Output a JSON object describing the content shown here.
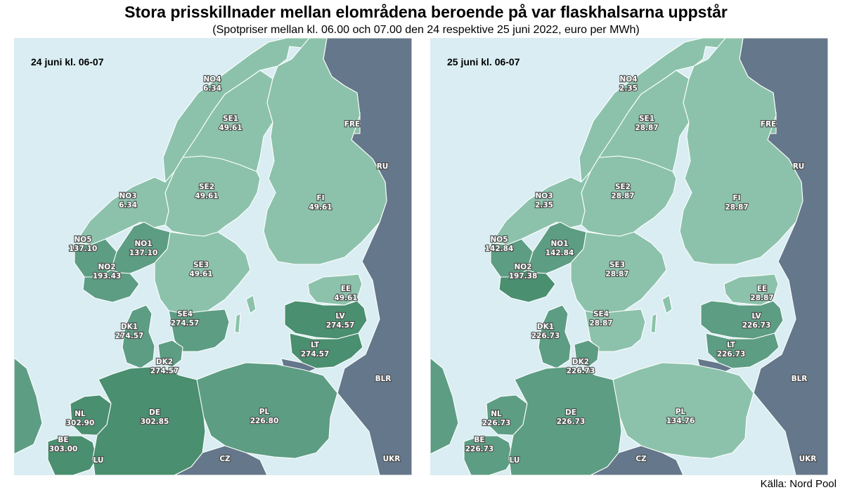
{
  "title": "Stora prisskillnader mellan elområdena beroende på var flaskhalsarna uppstår",
  "subtitle": "(Spotpriser mellan kl. 06.00 och 07.00 den 24 respektive 25 juni 2022, euro per MWh)",
  "source": "Källa: Nord Pool",
  "colors": {
    "sea": "#d9edf2",
    "non_nordpool": "#65778a",
    "light": "#8cc2ab",
    "mid": "#5d9d83",
    "dark": "#4a8f6f"
  },
  "panels": [
    {
      "label": "24 juni kl. 06-07",
      "zones": {
        "NO4": {
          "name": "NO4",
          "price": "6.34"
        },
        "SE1": {
          "name": "SE1",
          "price": "49.61"
        },
        "SE2": {
          "name": "SE2",
          "price": "49.61"
        },
        "NO3": {
          "name": "NO3",
          "price": "6.34"
        },
        "FI": {
          "name": "FI",
          "price": "49.61"
        },
        "NO5": {
          "name": "NO5",
          "price": "137.10"
        },
        "NO1": {
          "name": "NO1",
          "price": "137.10"
        },
        "NO2": {
          "name": "NO2",
          "price": "193.43"
        },
        "SE3": {
          "name": "SE3",
          "price": "49.61"
        },
        "EE": {
          "name": "EE",
          "price": "49.61"
        },
        "SE4": {
          "name": "SE4",
          "price": "274.57"
        },
        "LV": {
          "name": "LV",
          "price": "274.57"
        },
        "DK1": {
          "name": "DK1",
          "price": "274.57"
        },
        "LT": {
          "name": "LT",
          "price": "274.57"
        },
        "DK2": {
          "name": "DK2",
          "price": "274.57"
        },
        "NL": {
          "name": "NL",
          "price": "302.90"
        },
        "DE": {
          "name": "DE",
          "price": "302.85"
        },
        "PL": {
          "name": "PL",
          "price": "226.80"
        },
        "BE": {
          "name": "BE",
          "price": "303.00"
        }
      },
      "levels": {
        "NO4": "light",
        "NO3": "light",
        "SE1": "light",
        "SE2": "light",
        "SE3": "light",
        "FI": "light",
        "EE": "light",
        "NO5": "mid",
        "NO1": "mid",
        "NO2": "mid",
        "SE4": "mid",
        "DK1": "mid",
        "DK2": "mid",
        "PL": "mid",
        "LV": "dark",
        "LT": "dark",
        "NL": "dark",
        "DE": "dark",
        "BE": "dark"
      }
    },
    {
      "label": "25 juni kl. 06-07",
      "zones": {
        "NO4": {
          "name": "NO4",
          "price": "2.35"
        },
        "SE1": {
          "name": "SE1",
          "price": "28.87"
        },
        "SE2": {
          "name": "SE2",
          "price": "28.87"
        },
        "NO3": {
          "name": "NO3",
          "price": "2.35"
        },
        "FI": {
          "name": "FI",
          "price": "28.87"
        },
        "NO5": {
          "name": "NO5",
          "price": "142.84"
        },
        "NO1": {
          "name": "NO1",
          "price": "142.84"
        },
        "NO2": {
          "name": "NO2",
          "price": "197.38"
        },
        "SE3": {
          "name": "SE3",
          "price": "28.87"
        },
        "EE": {
          "name": "EE",
          "price": "28.87"
        },
        "SE4": {
          "name": "SE4",
          "price": "28.87"
        },
        "LV": {
          "name": "LV",
          "price": "226.73"
        },
        "DK1": {
          "name": "DK1",
          "price": "226.73"
        },
        "LT": {
          "name": "LT",
          "price": "226.73"
        },
        "DK2": {
          "name": "DK2",
          "price": "226.73"
        },
        "NL": {
          "name": "NL",
          "price": "226.73"
        },
        "DE": {
          "name": "DE",
          "price": "226.73"
        },
        "PL": {
          "name": "PL",
          "price": "134.76"
        },
        "BE": {
          "name": "BE",
          "price": "226.73"
        }
      },
      "levels": {
        "NO4": "light",
        "NO3": "light",
        "SE1": "light",
        "SE2": "light",
        "SE3": "light",
        "SE4": "light",
        "FI": "light",
        "EE": "light",
        "PL": "light",
        "NO5": "mid",
        "NO1": "mid",
        "NO2": "dark",
        "DK1": "mid",
        "DK2": "mid",
        "LV": "mid",
        "LT": "mid",
        "NL": "mid",
        "DE": "mid",
        "BE": "mid"
      }
    }
  ],
  "external_zones": [
    "FRE",
    "RU",
    "BLR",
    "UKR",
    "CZ",
    "LU"
  ]
}
